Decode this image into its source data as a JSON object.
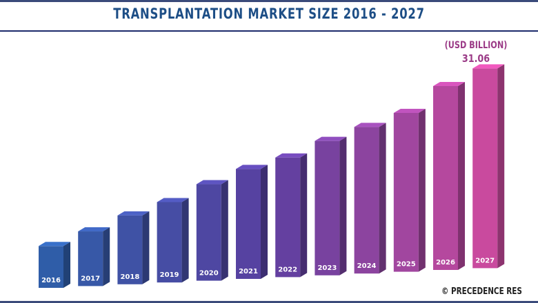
{
  "chart_data": {
    "type": "bar",
    "title": "TRANSPLANTATION MARKET SIZE 2016 - 2027",
    "unit_label": "(USD BILLION)",
    "categories": [
      "2016",
      "2017",
      "2018",
      "2019",
      "2020",
      "2021",
      "2022",
      "2023",
      "2024",
      "2025",
      "2026",
      "2027"
    ],
    "values": [
      6.5,
      8.5,
      10.7,
      12.5,
      15.0,
      17.1,
      18.6,
      20.9,
      22.8,
      24.7,
      28.6,
      31.06
    ],
    "data_labels": {
      "2027": "31.06"
    },
    "ylim": [
      0,
      32
    ],
    "grid": false,
    "colors": {
      "start": "#2f5da8",
      "mid": "#5a3fa0",
      "end": "#c94a9e",
      "title": "#1d4e86",
      "label": "#9b3b87"
    }
  },
  "source": "© PRECEDENCE RES"
}
